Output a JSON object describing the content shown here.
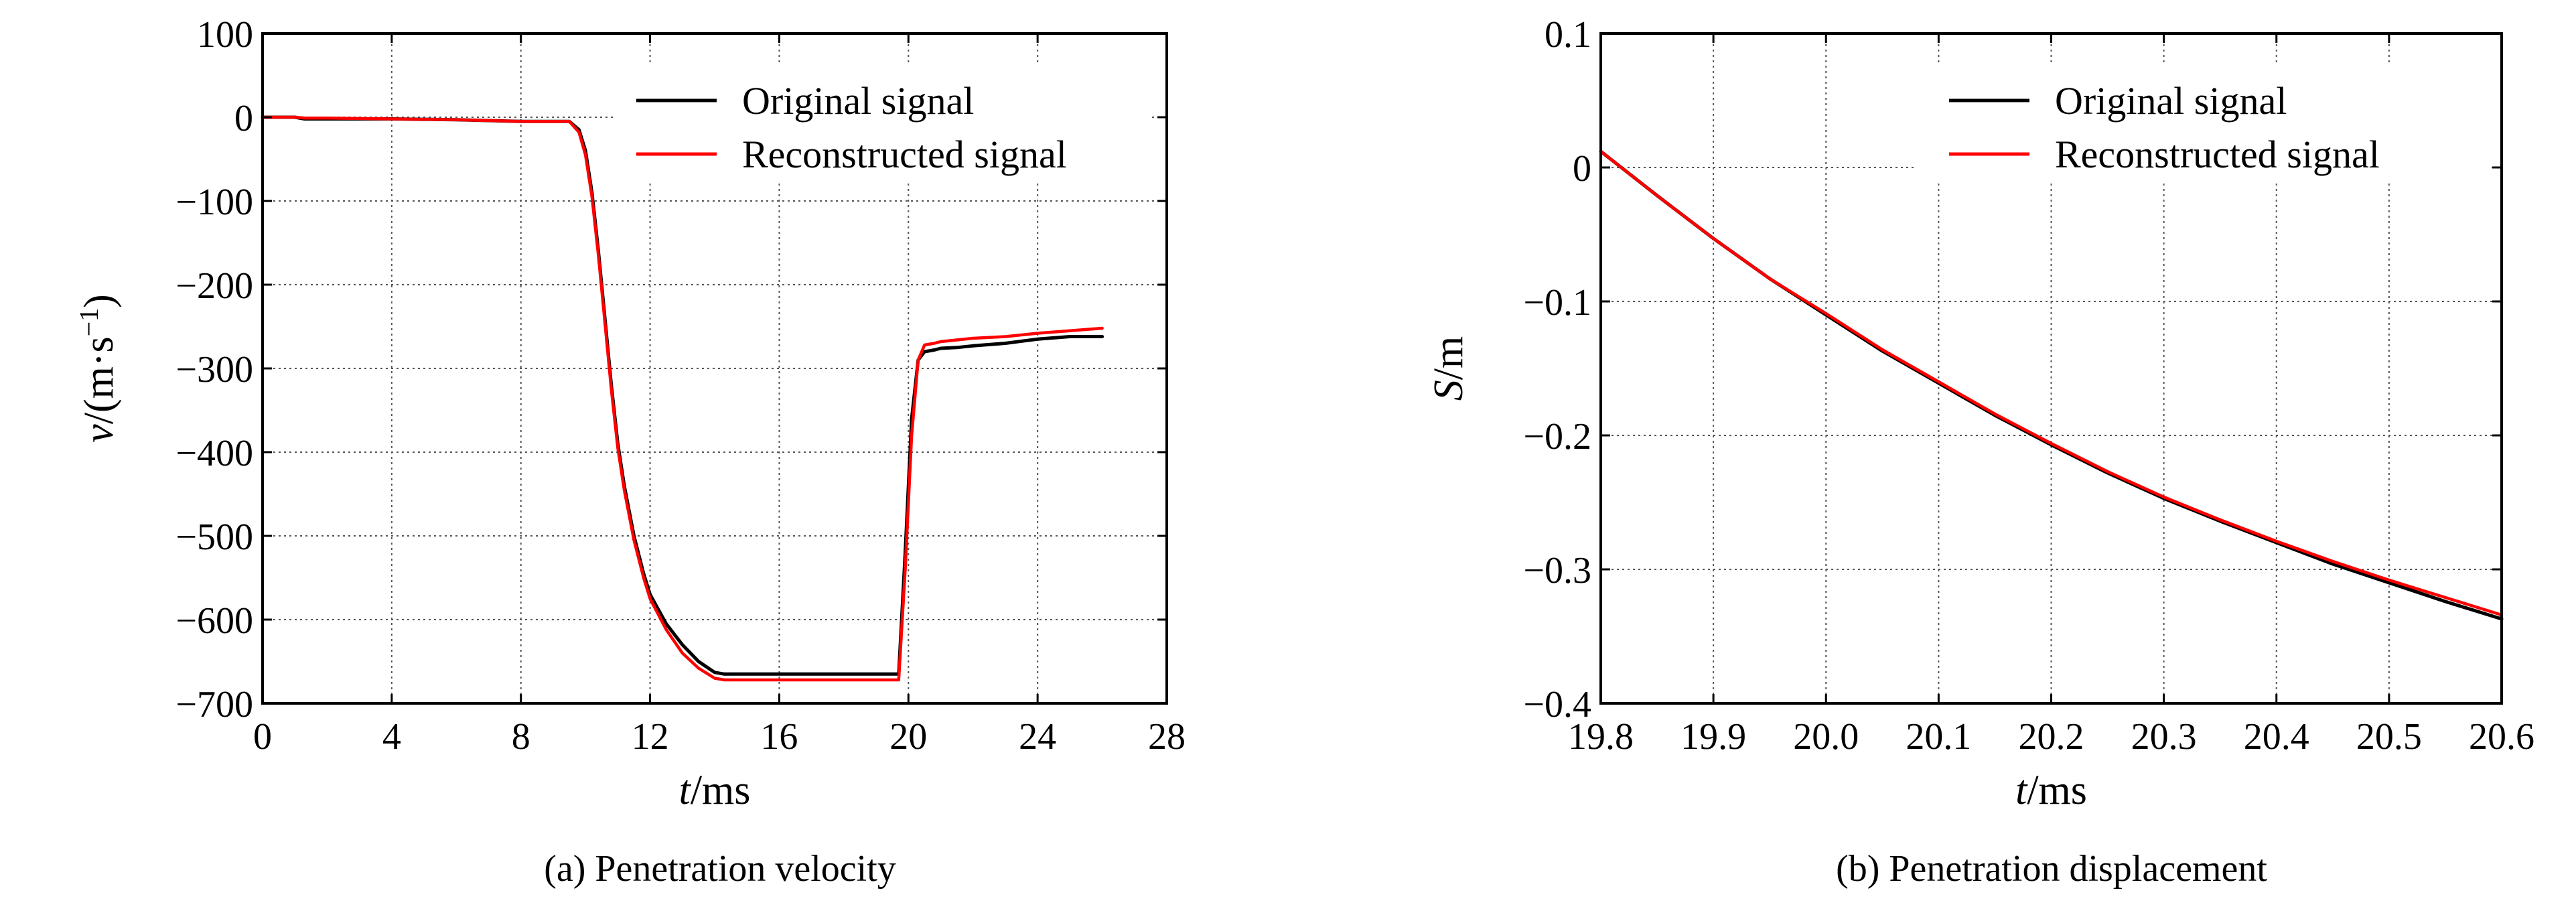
{
  "chart_data": [
    {
      "type": "line",
      "caption": "(a) Penetration velocity",
      "xlabel_italic": "t",
      "xlabel_unit": "/ms",
      "ylabel_italic": "v",
      "ylabel_unit": "/(m·s",
      "ylabel_sup": "−1",
      "ylabel_close": ")",
      "xlim": [
        0,
        28
      ],
      "ylim": [
        -700,
        100
      ],
      "xticks": [
        0,
        4,
        8,
        12,
        16,
        20,
        24,
        28
      ],
      "xtick_labels": [
        "0",
        "4",
        "8",
        "12",
        "16",
        "20",
        "24",
        "28"
      ],
      "yticks": [
        100,
        0,
        -100,
        -200,
        -300,
        -400,
        -500,
        -600,
        -700
      ],
      "ytick_labels": [
        "100",
        "0",
        "−100",
        "−200",
        "−300",
        "−400",
        "−500",
        "−600",
        "−700"
      ],
      "grid": true,
      "legend_position": "top-right",
      "series": [
        {
          "name": "Original signal",
          "color": "#000000",
          "x": [
            0,
            1,
            1.3,
            2,
            4,
            6,
            8,
            9.5,
            9.8,
            10.0,
            10.2,
            10.4,
            10.6,
            10.8,
            11.0,
            11.2,
            11.5,
            11.8,
            12.0,
            12.5,
            13.0,
            13.5,
            14.0,
            14.3,
            14.6,
            15,
            17,
            19.7,
            19.9,
            20.1,
            20.3,
            20.5,
            20.8,
            21,
            21.5,
            22,
            23,
            24,
            25,
            26
          ],
          "y": [
            0,
            0,
            -2,
            -2,
            -2,
            -3,
            -5,
            -5,
            -15,
            -40,
            -90,
            -160,
            -240,
            -320,
            -390,
            -440,
            -500,
            -545,
            -570,
            -605,
            -630,
            -650,
            -663,
            -665,
            -665,
            -665,
            -665,
            -665,
            -520,
            -360,
            -290,
            -280,
            -278,
            -276,
            -275,
            -273,
            -270,
            -265,
            -262,
            -262
          ]
        },
        {
          "name": "Reconstructed signal",
          "color": "#ff0000",
          "x": [
            0,
            1,
            1.3,
            2,
            4,
            6,
            8,
            9.5,
            9.8,
            10.0,
            10.2,
            10.4,
            10.6,
            10.8,
            11.0,
            11.2,
            11.5,
            11.8,
            12.0,
            12.5,
            13.0,
            13.5,
            14.0,
            14.3,
            15,
            17,
            19.7,
            19.9,
            20.1,
            20.3,
            20.5,
            20.8,
            21,
            21.5,
            22,
            23,
            24,
            25,
            26
          ],
          "y": [
            0,
            0,
            -1,
            -1,
            -2,
            -3,
            -5,
            -5,
            -18,
            -45,
            -95,
            -165,
            -245,
            -325,
            -395,
            -445,
            -505,
            -550,
            -575,
            -612,
            -640,
            -658,
            -670,
            -672,
            -672,
            -672,
            -672,
            -540,
            -380,
            -290,
            -272,
            -270,
            -268,
            -266,
            -264,
            -262,
            -258,
            -255,
            -252
          ]
        }
      ]
    },
    {
      "type": "line",
      "caption": "(b) Penetration displacement",
      "xlabel_italic": "t",
      "xlabel_unit": "/ms",
      "ylabel_italic": "S",
      "ylabel_unit": "/m",
      "xlim": [
        19.8,
        20.6
      ],
      "ylim": [
        -0.4,
        0.1
      ],
      "xticks": [
        19.8,
        19.9,
        20.0,
        20.1,
        20.2,
        20.3,
        20.4,
        20.5,
        20.6
      ],
      "xtick_labels": [
        "19.8",
        "19.9",
        "20.0",
        "20.1",
        "20.2",
        "20.3",
        "20.4",
        "20.5",
        "20.6"
      ],
      "yticks": [
        0.1,
        0,
        -0.1,
        -0.2,
        -0.3,
        -0.4
      ],
      "ytick_labels": [
        "0.1",
        "0",
        "−0.1",
        "−0.2",
        "−0.3",
        "−0.4"
      ],
      "grid": true,
      "legend_position": "top-right",
      "series": [
        {
          "name": "Original signal",
          "color": "#000000",
          "x": [
            19.8,
            19.85,
            19.9,
            19.95,
            20.0,
            20.05,
            20.1,
            20.15,
            20.2,
            20.25,
            20.3,
            20.35,
            20.4,
            20.45,
            20.5,
            20.55,
            20.6
          ],
          "y": [
            0.012,
            -0.021,
            -0.053,
            -0.083,
            -0.11,
            -0.137,
            -0.161,
            -0.185,
            -0.207,
            -0.228,
            -0.247,
            -0.264,
            -0.28,
            -0.296,
            -0.31,
            -0.324,
            -0.337
          ]
        },
        {
          "name": "Reconstructed signal",
          "color": "#ff0000",
          "x": [
            19.8,
            19.85,
            19.9,
            19.95,
            20.0,
            20.05,
            20.1,
            20.15,
            20.2,
            20.25,
            20.3,
            20.35,
            20.4,
            20.45,
            20.5,
            20.55,
            20.6
          ],
          "y": [
            0.012,
            -0.021,
            -0.053,
            -0.083,
            -0.109,
            -0.136,
            -0.16,
            -0.184,
            -0.206,
            -0.227,
            -0.246,
            -0.263,
            -0.279,
            -0.294,
            -0.308,
            -0.321,
            -0.334
          ]
        }
      ]
    }
  ]
}
